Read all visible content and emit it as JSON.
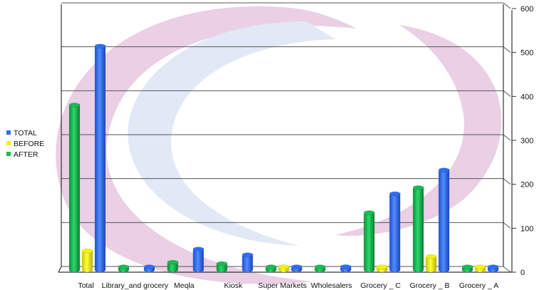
{
  "chart_data": {
    "type": "bar",
    "categories": [
      "Total",
      "Library_and grocery",
      "Meqla",
      "Kiosk",
      "Super Markets",
      "Wholesalers",
      "Grocery _ C",
      "Grocery _ B",
      "Grocery _ A"
    ],
    "series": [
      {
        "name": "AFTER",
        "color": "#1db954",
        "values": [
          378,
          4,
          20,
          17,
          7,
          9,
          133,
          190,
          7
        ]
      },
      {
        "name": "BEFORE",
        "color": "#f2f20a",
        "values": [
          46,
          0,
          0,
          0,
          9,
          0,
          4,
          33,
          8
        ]
      },
      {
        "name": "TOTAL",
        "color": "#2e6ef0",
        "values": [
          512,
          5,
          50,
          37,
          7,
          10,
          176,
          230,
          9
        ]
      }
    ],
    "y_axis": {
      "position": "right",
      "min": 0,
      "max": 600,
      "ticks": [
        0,
        100,
        200,
        300,
        400,
        500,
        600
      ]
    },
    "legend_order": [
      "TOTAL",
      "BEFORE",
      "AFTER"
    ],
    "legend_placement": "left",
    "grid": true
  }
}
